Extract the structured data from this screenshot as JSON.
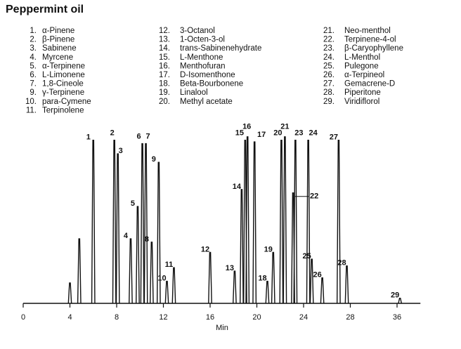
{
  "chart_data": {
    "type": "chromatogram",
    "title": "Peppermint oil",
    "x_label": "Min",
    "compounds": [
      {
        "number": "1.",
        "name": "α-Pinene"
      },
      {
        "number": "2.",
        "name": "β-Pinene"
      },
      {
        "number": "3.",
        "name": "Sabinene"
      },
      {
        "number": "4.",
        "name": "Myrcene"
      },
      {
        "number": "5.",
        "name": "α-Terpinene"
      },
      {
        "number": "6.",
        "name": "L-Limonene"
      },
      {
        "number": "7.",
        "name": "1,8-Cineole"
      },
      {
        "number": "9.",
        "name": "γ-Terpinene"
      },
      {
        "number": "10.",
        "name": "para-Cymene"
      },
      {
        "number": "11.",
        "name": "Terpinolene"
      },
      {
        "number": "12.",
        "name": "3-Octanol"
      },
      {
        "number": "13.",
        "name": "1-Octen-3-ol"
      },
      {
        "number": "14.",
        "name": "trans-Sabinenehydrate"
      },
      {
        "number": "15.",
        "name": "L-Menthone"
      },
      {
        "number": "16.",
        "name": "Menthofuran"
      },
      {
        "number": "17.",
        "name": "D-Isomenthone"
      },
      {
        "number": "18.",
        "name": "Beta-Bourbonene"
      },
      {
        "number": "19.",
        "name": "Linalool"
      },
      {
        "number": "20.",
        "name": "Methyl acetate"
      },
      {
        "number": "21.",
        "name": "Neo-menthol"
      },
      {
        "number": "22.",
        "name": "Terpinene-4-ol"
      },
      {
        "number": "23.",
        "name": "β-Caryophyllene"
      },
      {
        "number": "24.",
        "name": "L-Menthol"
      },
      {
        "number": "25.",
        "name": "Pulegone"
      },
      {
        "number": "26.",
        "name": "α-Terpineol"
      },
      {
        "number": "27.",
        "name": "Gemacrene-D"
      },
      {
        "number": "28.",
        "name": "Piperitone"
      },
      {
        "number": "29.",
        "name": "Viridiflorol"
      }
    ],
    "labels": [
      null,
      null,
      "1",
      "2",
      "3",
      "4",
      "5",
      "6",
      "7",
      "8",
      "9",
      "10",
      "11",
      "12",
      "13",
      "14",
      "15",
      "16",
      "17",
      "18",
      "19",
      "20",
      "21",
      "22",
      "23",
      "24",
      "25",
      "26",
      "27",
      "28",
      "29"
    ],
    "x": [
      4.0,
      4.8,
      6.0,
      7.8,
      8.1,
      9.2,
      9.8,
      10.2,
      10.5,
      11.0,
      11.6,
      12.3,
      12.9,
      16.0,
      18.1,
      18.7,
      19.0,
      19.2,
      19.8,
      20.9,
      21.4,
      22.1,
      22.4,
      23.1,
      23.3,
      24.4,
      24.7,
      25.6,
      27.0,
      27.7,
      36.5
    ],
    "values": [
      12,
      38,
      96,
      96,
      88,
      38,
      57,
      94,
      94,
      36,
      83,
      13,
      21,
      30,
      19,
      67,
      96,
      98,
      95,
      13,
      30,
      96,
      98,
      65,
      96,
      96,
      26,
      15,
      96,
      22,
      3
    ],
    "xlim": [
      0,
      40
    ],
    "xticks": [
      0,
      4,
      8,
      12,
      16,
      20,
      24,
      28,
      36
    ],
    "ylim": [
      0,
      100
    ]
  }
}
